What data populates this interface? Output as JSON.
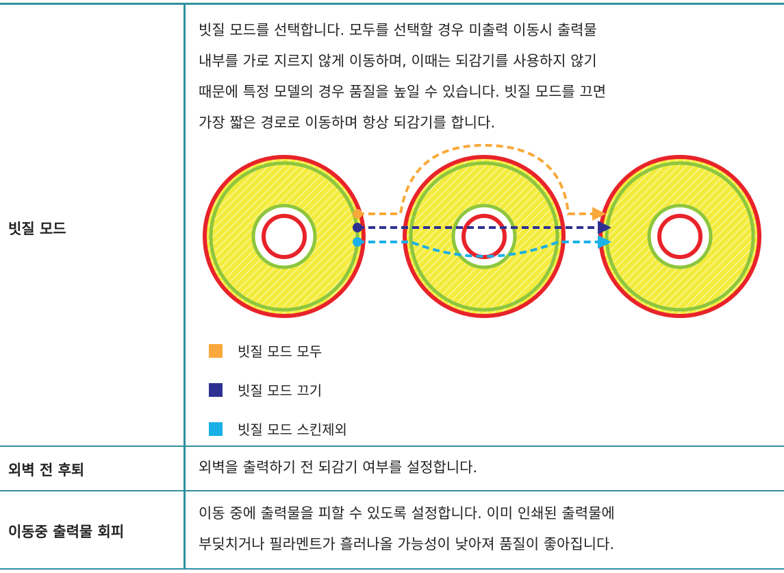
{
  "table": {
    "rows": [
      {
        "label": "빗질 모드",
        "description": [
          "빗질 모드를 선택합니다. 모두를 선택할 경우 미출력 이동시 출력물",
          "내부를 가로 지르지 않게 이동하며, 이때는 되감기를 사용하지 않기",
          "때문에 특정 모델의 경우 품질을 높일 수 있습니다. 빗질 모드를 끄면",
          "가장 짧은 경로로 이동하며 항상 되감기를 합니다."
        ],
        "legend": [
          {
            "label": "빗질 모드 모두",
            "color": "#f9a93b"
          },
          {
            "label": "빗질 모드 끄기",
            "color": "#2e3192"
          },
          {
            "label": "빗질 모드 스킨제외",
            "color": "#1ab0e8"
          }
        ]
      },
      {
        "label": "외벽 전 후퇴",
        "description": [
          "외벽을 출력하기 전 되감기 여부를 설정합니다."
        ]
      },
      {
        "label": "이동중 출력물 회피",
        "description": [
          "이동 중에 출력물을 피할 수 있도록 설정합니다. 이미 인쇄된 출력물에",
          "부딪치거나 필라멘트가 흘러나올 가능성이 낮아져 품질이 좋아집니다."
        ]
      }
    ]
  }
}
